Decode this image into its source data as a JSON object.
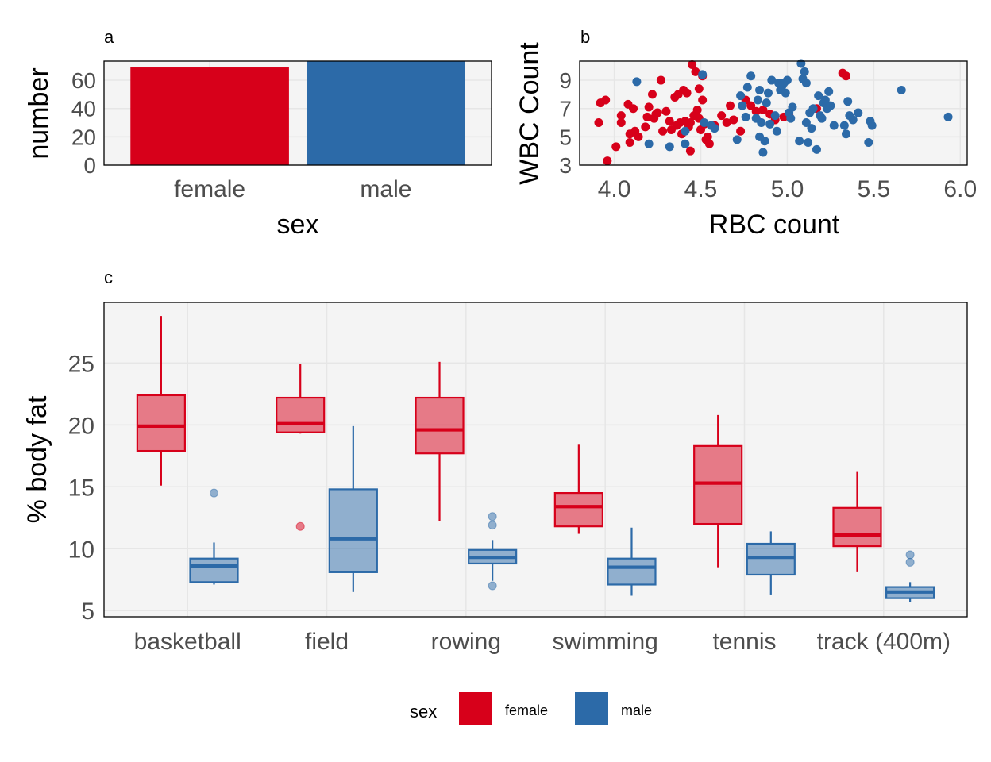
{
  "colors": {
    "female": "#D7001A",
    "male": "#2C6AA8",
    "panel_bg": "#F4F4F4",
    "grid": "#E6E6E6",
    "tick_text": "#4D4D4D"
  },
  "chart_data": [
    {
      "panel": "a",
      "type": "bar",
      "title": "a",
      "xlabel": "sex",
      "ylabel": "number",
      "categories": [
        "female",
        "male"
      ],
      "values": [
        69,
        75
      ],
      "yticks": [
        0,
        20,
        40,
        60
      ],
      "ylim": [
        0,
        73.5
      ],
      "grid": true
    },
    {
      "panel": "b",
      "type": "scatter",
      "title": "b",
      "xlabel": "RBC count",
      "ylabel": "WBC Count",
      "xticks": [
        "4.0",
        "4.5",
        "5.0",
        "5.5",
        "6.0"
      ],
      "yticks": [
        3,
        5,
        7,
        9
      ],
      "xlim": [
        3.8,
        6.04
      ],
      "ylim": [
        3,
        10.35
      ],
      "grid": true,
      "series": [
        {
          "name": "female",
          "points": [
            [
              3.91,
              6.0
            ],
            [
              3.92,
              7.4
            ],
            [
              3.95,
              7.6
            ],
            [
              3.96,
              3.3
            ],
            [
              4.01,
              4.3
            ],
            [
              4.04,
              6.0
            ],
            [
              4.04,
              6.5
            ],
            [
              4.08,
              7.3
            ],
            [
              4.09,
              5.2
            ],
            [
              4.09,
              4.6
            ],
            [
              4.11,
              7.0
            ],
            [
              4.12,
              5.4
            ],
            [
              4.14,
              5.0
            ],
            [
              4.18,
              5.7
            ],
            [
              4.19,
              6.4
            ],
            [
              4.2,
              7.1
            ],
            [
              4.22,
              8.0
            ],
            [
              4.23,
              6.3
            ],
            [
              4.24,
              6.6
            ],
            [
              4.25,
              6.7
            ],
            [
              4.27,
              9.0
            ],
            [
              4.28,
              5.4
            ],
            [
              4.3,
              6.8
            ],
            [
              4.32,
              6.1
            ],
            [
              4.33,
              5.5
            ],
            [
              4.35,
              7.8
            ],
            [
              4.36,
              5.8
            ],
            [
              4.37,
              8.0
            ],
            [
              4.38,
              6.0
            ],
            [
              4.39,
              5.2
            ],
            [
              4.4,
              8.3
            ],
            [
              4.41,
              6.1
            ],
            [
              4.42,
              8.1
            ],
            [
              4.43,
              5.7
            ],
            [
              4.44,
              6.0
            ],
            [
              4.44,
              4.0
            ],
            [
              4.45,
              10.1
            ],
            [
              4.46,
              6.5
            ],
            [
              4.47,
              9.6
            ],
            [
              4.48,
              6.9
            ],
            [
              4.49,
              8.4
            ],
            [
              4.49,
              6.3
            ],
            [
              4.5,
              5.5
            ],
            [
              4.51,
              9.3
            ],
            [
              4.51,
              7.6
            ],
            [
              4.52,
              5.9
            ],
            [
              4.53,
              4.8
            ],
            [
              4.54,
              5.0
            ],
            [
              4.55,
              4.5
            ],
            [
              4.58,
              5.8
            ],
            [
              4.62,
              6.5
            ],
            [
              4.65,
              6.0
            ],
            [
              4.67,
              7.2
            ],
            [
              4.69,
              6.2
            ],
            [
              4.73,
              5.4
            ],
            [
              4.76,
              7.6
            ],
            [
              4.79,
              7.2
            ],
            [
              4.82,
              6.8
            ],
            [
              4.86,
              6.9
            ],
            [
              4.9,
              6.6
            ],
            [
              4.93,
              6.2
            ],
            [
              4.98,
              6.4
            ],
            [
              5.01,
              6.6
            ],
            [
              5.17,
              7.0
            ],
            [
              5.32,
              9.5
            ],
            [
              5.34,
              9.3
            ]
          ]
        },
        {
          "name": "male",
          "points": [
            [
              4.13,
              8.9
            ],
            [
              4.2,
              4.5
            ],
            [
              4.32,
              4.3
            ],
            [
              4.41,
              5.4
            ],
            [
              4.41,
              4.5
            ],
            [
              4.51,
              9.4
            ],
            [
              4.52,
              6.0
            ],
            [
              4.56,
              5.8
            ],
            [
              4.58,
              5.6
            ],
            [
              4.71,
              4.8
            ],
            [
              4.73,
              7.9
            ],
            [
              4.74,
              7.2
            ],
            [
              4.76,
              6.4
            ],
            [
              4.77,
              8.5
            ],
            [
              4.79,
              9.3
            ],
            [
              4.82,
              6.3
            ],
            [
              4.83,
              7.6
            ],
            [
              4.84,
              5.0
            ],
            [
              4.84,
              8.3
            ],
            [
              4.85,
              6.0
            ],
            [
              4.86,
              3.9
            ],
            [
              4.87,
              4.7
            ],
            [
              4.88,
              7.4
            ],
            [
              4.89,
              8.1
            ],
            [
              4.9,
              5.9
            ],
            [
              4.91,
              9.0
            ],
            [
              4.93,
              6.5
            ],
            [
              4.94,
              5.4
            ],
            [
              4.95,
              8.8
            ],
            [
              4.96,
              8.3
            ],
            [
              4.97,
              8.6
            ],
            [
              4.98,
              8.8
            ],
            [
              4.99,
              8.1
            ],
            [
              5.0,
              9.0
            ],
            [
              5.01,
              6.7
            ],
            [
              5.02,
              6.3
            ],
            [
              5.03,
              7.1
            ],
            [
              5.07,
              4.7
            ],
            [
              5.08,
              10.2
            ],
            [
              5.09,
              9.1
            ],
            [
              5.1,
              9.6
            ],
            [
              5.11,
              6.0
            ],
            [
              5.11,
              8.8
            ],
            [
              5.12,
              4.6
            ],
            [
              5.13,
              6.7
            ],
            [
              5.14,
              5.6
            ],
            [
              5.15,
              7.0
            ],
            [
              5.17,
              4.1
            ],
            [
              5.18,
              7.9
            ],
            [
              5.19,
              6.5
            ],
            [
              5.2,
              6.3
            ],
            [
              5.21,
              7.4
            ],
            [
              5.22,
              7.6
            ],
            [
              5.23,
              7.0
            ],
            [
              5.24,
              8.2
            ],
            [
              5.25,
              7.2
            ],
            [
              5.27,
              5.8
            ],
            [
              5.33,
              5.8
            ],
            [
              5.34,
              5.2
            ],
            [
              5.35,
              7.5
            ],
            [
              5.36,
              6.5
            ],
            [
              5.38,
              6.2
            ],
            [
              5.41,
              6.7
            ],
            [
              5.47,
              4.6
            ],
            [
              5.48,
              6.1
            ],
            [
              5.49,
              5.8
            ],
            [
              5.66,
              8.3
            ],
            [
              5.93,
              6.4
            ]
          ]
        }
      ]
    },
    {
      "panel": "c",
      "type": "boxplot",
      "title": "c",
      "xlabel": "",
      "ylabel": "% body fat",
      "categories": [
        "basketball",
        "field",
        "rowing",
        "swimming",
        "tennis",
        "track (400m)"
      ],
      "yticks": [
        5,
        10,
        15,
        20,
        25
      ],
      "ylim": [
        4.5,
        29.9
      ],
      "grid": true,
      "series": [
        {
          "name": "female",
          "boxes": [
            {
              "min": 15.1,
              "q1": 17.9,
              "median": 19.9,
              "q3": 22.4,
              "max": 28.8,
              "outliers": []
            },
            {
              "min": 19.3,
              "q1": 19.4,
              "median": 20.1,
              "q3": 22.2,
              "max": 24.9,
              "outliers": [
                11.8
              ]
            },
            {
              "min": 12.2,
              "q1": 17.7,
              "median": 19.6,
              "q3": 22.2,
              "max": 25.1,
              "outliers": []
            },
            {
              "min": 11.2,
              "q1": 11.8,
              "median": 13.4,
              "q3": 14.5,
              "max": 18.4,
              "outliers": []
            },
            {
              "min": 8.5,
              "q1": 12.0,
              "median": 15.3,
              "q3": 18.3,
              "max": 20.8,
              "outliers": []
            },
            {
              "min": 8.1,
              "q1": 10.2,
              "median": 11.1,
              "q3": 13.3,
              "max": 16.2,
              "outliers": []
            }
          ]
        },
        {
          "name": "male",
          "boxes": [
            {
              "min": 7.1,
              "q1": 7.3,
              "median": 8.6,
              "q3": 9.2,
              "max": 10.5,
              "outliers": [
                14.5
              ]
            },
            {
              "min": 6.5,
              "q1": 8.1,
              "median": 10.8,
              "q3": 14.8,
              "max": 19.9,
              "outliers": []
            },
            {
              "min": 7.4,
              "q1": 8.8,
              "median": 9.3,
              "q3": 9.9,
              "max": 10.7,
              "outliers": [
                12.6,
                11.9,
                7.0
              ]
            },
            {
              "min": 6.2,
              "q1": 7.1,
              "median": 8.5,
              "q3": 9.2,
              "max": 11.7,
              "outliers": []
            },
            {
              "min": 6.3,
              "q1": 7.9,
              "median": 9.3,
              "q3": 10.4,
              "max": 11.4,
              "outliers": []
            },
            {
              "min": 5.7,
              "q1": 6.0,
              "median": 6.5,
              "q3": 6.9,
              "max": 7.3,
              "outliers": [
                9.5,
                8.9
              ]
            }
          ]
        }
      ]
    }
  ],
  "legend": {
    "title": "sex",
    "placement": "bottom",
    "items": [
      {
        "label": "female",
        "key": "female"
      },
      {
        "label": "male",
        "key": "male"
      }
    ]
  }
}
